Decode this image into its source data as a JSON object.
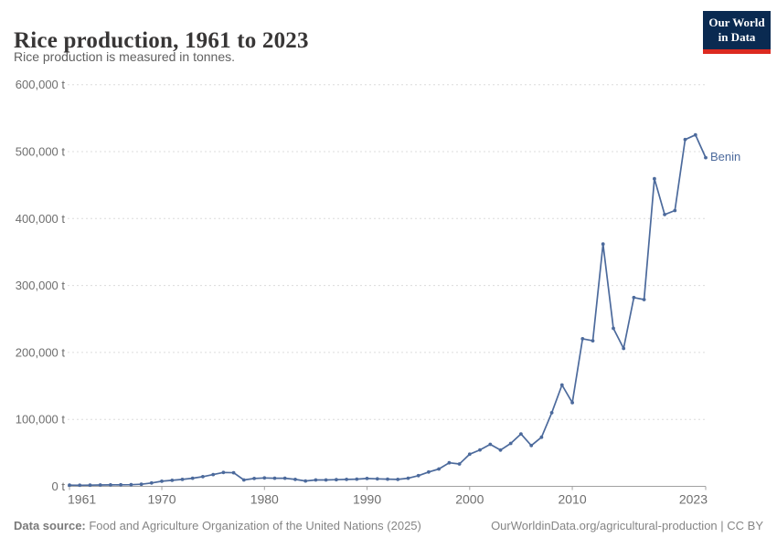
{
  "header": {
    "title": "Rice production, 1961 to 2023",
    "subtitle": "Rice production is measured in tonnes.",
    "logo": {
      "line1": "Our World",
      "line2": "in Data"
    }
  },
  "chart_data": {
    "type": "line",
    "title": "Rice production, 1961 to 2023",
    "ylabel": "",
    "xlabel": "",
    "unit": "t",
    "entity": "Benin",
    "line_color": "#4C6A9C",
    "grid": "dashed-horizontal",
    "legend_position": "end-of-line-label",
    "ylim": [
      0,
      600000
    ],
    "xlim": [
      1961,
      2023
    ],
    "yticks": [
      {
        "value": 0,
        "label": "0 t"
      },
      {
        "value": 100000,
        "label": "100,000 t"
      },
      {
        "value": 200000,
        "label": "200,000 t"
      },
      {
        "value": 300000,
        "label": "300,000 t"
      },
      {
        "value": 400000,
        "label": "400,000 t"
      },
      {
        "value": 500000,
        "label": "500,000 t"
      },
      {
        "value": 600000,
        "label": "600,000 t"
      }
    ],
    "xticks": [
      {
        "year": 1961,
        "label": "1961"
      },
      {
        "year": 1970,
        "label": "1970"
      },
      {
        "year": 1980,
        "label": "1980"
      },
      {
        "year": 1990,
        "label": "1990"
      },
      {
        "year": 2000,
        "label": "2000"
      },
      {
        "year": 2010,
        "label": "2010"
      },
      {
        "year": 2023,
        "label": "2023"
      }
    ],
    "x": [
      1961,
      1962,
      1963,
      1964,
      1965,
      1966,
      1967,
      1968,
      1969,
      1970,
      1971,
      1972,
      1973,
      1974,
      1975,
      1976,
      1977,
      1978,
      1979,
      1980,
      1981,
      1982,
      1983,
      1984,
      1985,
      1986,
      1987,
      1988,
      1989,
      1990,
      1991,
      1992,
      1993,
      1994,
      1995,
      1996,
      1997,
      1998,
      1999,
      2000,
      2001,
      2002,
      2003,
      2004,
      2005,
      2006,
      2007,
      2008,
      2009,
      2010,
      2011,
      2012,
      2013,
      2014,
      2015,
      2016,
      2017,
      2018,
      2019,
      2020,
      2021,
      2022,
      2023
    ],
    "series": [
      {
        "name": "Benin",
        "values": [
          1800,
          1700,
          1800,
          2000,
          2200,
          2300,
          2500,
          3100,
          5000,
          7700,
          9000,
          10400,
          12200,
          14500,
          17600,
          20700,
          20300,
          9500,
          11800,
          12600,
          12200,
          12200,
          10400,
          8100,
          9500,
          9500,
          9900,
          10400,
          10800,
          11800,
          11200,
          10800,
          10400,
          12100,
          15900,
          21400,
          25900,
          35200,
          33400,
          48000,
          54500,
          62800,
          54100,
          64100,
          78300,
          61000,
          73400,
          110000,
          151500,
          125000,
          220500,
          217500,
          362000,
          236000,
          206000,
          282000,
          279000,
          459500,
          406000,
          412000,
          518000,
          525000,
          491000
        ]
      }
    ]
  },
  "footer": {
    "source_label": "Data source:",
    "source_text": " Food and Agriculture Organization of the United Nations (2025)",
    "attribution": "OurWorldinData.org/agricultural-production | CC BY"
  },
  "colors": {
    "line": "#4C6A9C",
    "gridline": "#dcdcdc",
    "axis": "#a1a1a1",
    "tick_label": "#6e6e6e",
    "logo_bg": "#0a2a51",
    "logo_accent": "#dc2a20"
  }
}
